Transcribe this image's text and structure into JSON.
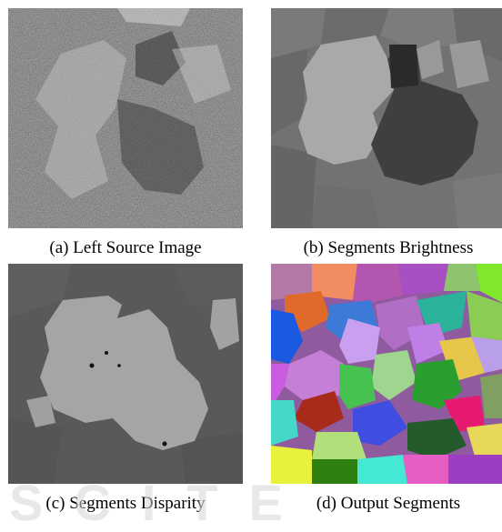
{
  "figure": {
    "panels": [
      {
        "id": "a",
        "caption": "(a) Left Source Image"
      },
      {
        "id": "b",
        "caption": "(b) Segments Brightness"
      },
      {
        "id": "c",
        "caption": "(c) Segments Disparity"
      },
      {
        "id": "d",
        "caption": "(d) Output Segments"
      }
    ],
    "watermark": "SCITE"
  },
  "colors": {
    "grayscale_background": "#6f6f6f",
    "brightness_dark_region": "#3d3d3d",
    "disparity_background": "#595959",
    "disparity_region": "#a5a5a5",
    "segment_palette": [
      "#f28d62",
      "#b256b0",
      "#8ec46e",
      "#7fe82b",
      "#3b7ad6",
      "#e06a2a",
      "#1a5ae0",
      "#c57fd6",
      "#2a9e2f",
      "#45d8c9",
      "#e8d85a",
      "#a82a1a",
      "#e65ec4",
      "#235b2a",
      "#e6f23c",
      "#2d7f10",
      "#44e8d4",
      "#3f4de0",
      "#b1e07a",
      "#e71a72"
    ]
  }
}
